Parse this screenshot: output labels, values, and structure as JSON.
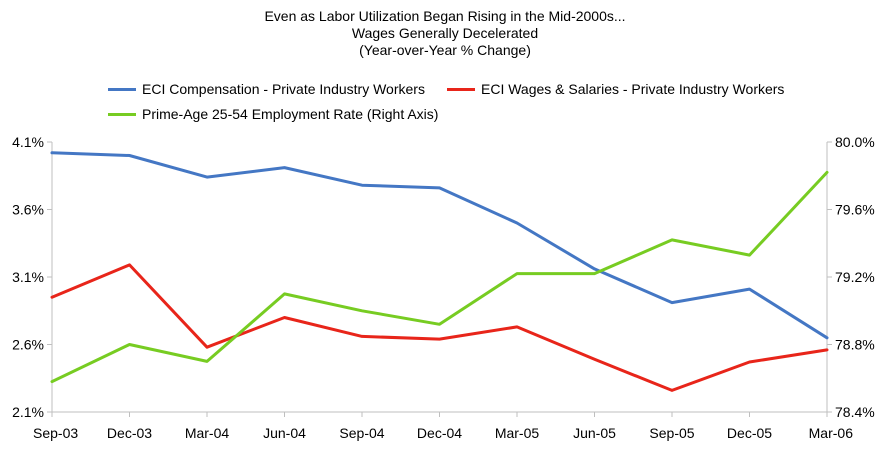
{
  "chart_data": {
    "type": "line",
    "title": [
      "Even as Labor Utilization Began Rising in the Mid-2000s...",
      "Wages Generally Decelerated",
      "(Year-over-Year % Change)"
    ],
    "categories": [
      "Sep-03",
      "Dec-03",
      "Mar-04",
      "Jun-04",
      "Sep-04",
      "Dec-04",
      "Mar-05",
      "Jun-05",
      "Sep-05",
      "Dec-05",
      "Mar-06"
    ],
    "left_axis": {
      "ticks": [
        "4.1%",
        "3.6%",
        "3.1%",
        "2.6%",
        "2.1%"
      ],
      "ylim": [
        2.1,
        4.1
      ]
    },
    "right_axis": {
      "ticks": [
        "80.0%",
        "79.6%",
        "79.2%",
        "78.8%",
        "78.4%"
      ],
      "ylim": [
        78.4,
        80.0
      ]
    },
    "series": [
      {
        "name": "ECI Compensation - Private Industry Workers",
        "axis": "left",
        "color": "#4477c4",
        "values": [
          4.02,
          4.0,
          3.84,
          3.91,
          3.78,
          3.76,
          3.5,
          3.16,
          2.91,
          3.01,
          2.65
        ]
      },
      {
        "name": "ECI Wages & Salaries - Private Industry Workers",
        "axis": "left",
        "color": "#e8251a",
        "values": [
          2.95,
          3.19,
          2.58,
          2.8,
          2.66,
          2.64,
          2.73,
          2.49,
          2.26,
          2.47,
          2.56
        ]
      },
      {
        "name": "Prime-Age 25-54 Employment Rate (Right Axis)",
        "axis": "right",
        "color": "#77cc22",
        "values": [
          78.58,
          78.8,
          78.7,
          79.1,
          79.0,
          78.92,
          79.22,
          79.22,
          79.42,
          79.33,
          79.82
        ]
      }
    ],
    "legend": "top-center",
    "grid": false
  }
}
